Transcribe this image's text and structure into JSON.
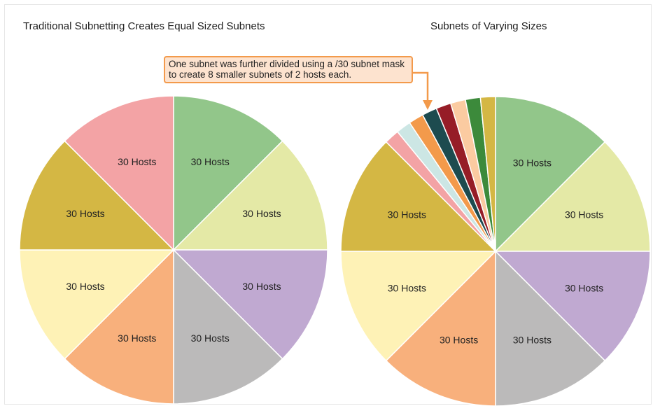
{
  "chart_data": [
    {
      "type": "pie",
      "title": "Traditional Subnetting Creates Equal Sized Subnets",
      "categories": [
        "30 Hosts",
        "30 Hosts",
        "30 Hosts",
        "30 Hosts",
        "30 Hosts",
        "30 Hosts",
        "30 Hosts",
        "30 Hosts"
      ],
      "values": [
        1,
        1,
        1,
        1,
        1,
        1,
        1,
        1
      ],
      "colors": [
        "#92c68a",
        "#e4e9a6",
        "#c0a9d1",
        "#bbbaba",
        "#f8b07c",
        "#fef2b6",
        "#d4b744",
        "#f3a3a5"
      ]
    },
    {
      "type": "pie",
      "title": "Subnets of Varying Sizes",
      "categories": [
        "30 Hosts",
        "30 Hosts",
        "30 Hosts",
        "30 Hosts",
        "30 Hosts",
        "30 Hosts",
        "30 Hosts",
        "",
        "",
        "",
        "",
        "",
        "",
        "",
        ""
      ],
      "values": [
        8,
        8,
        8,
        8,
        8,
        8,
        8,
        1,
        1,
        1,
        1,
        1,
        1,
        1,
        1
      ],
      "colors": [
        "#92c68a",
        "#e4e9a6",
        "#c0a9d1",
        "#bbbaba",
        "#f8b07c",
        "#fef2b6",
        "#d4b744",
        "#f3a3a5",
        "#cce6e4",
        "#f39a4b",
        "#1d4b4f",
        "#961d27",
        "#fbcba1",
        "#3c8a3b",
        "#d4b744"
      ],
      "annotation": "One subnet was further divided using a /30 subnet mask to create 8 smaller subnets of 2 hosts each.",
      "annotation_color": "#f39a4b"
    }
  ]
}
